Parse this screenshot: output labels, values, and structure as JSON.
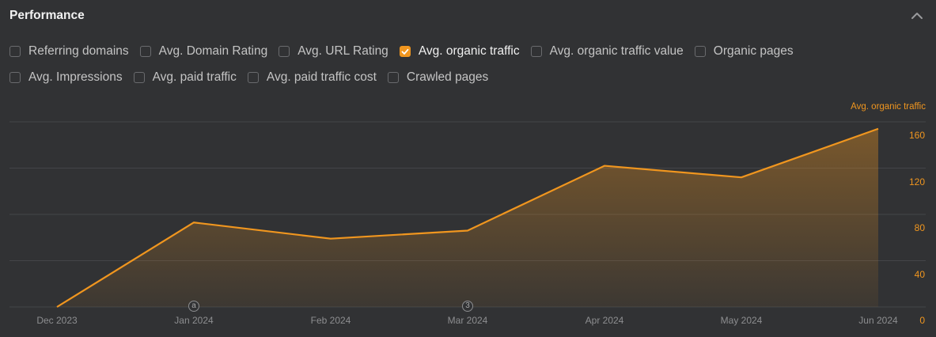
{
  "panel": {
    "title": "Performance",
    "collapse_icon": "chevron-up-icon"
  },
  "filters": {
    "row1": [
      {
        "label": "Referring domains",
        "checked": false
      },
      {
        "label": "Avg. Domain Rating",
        "checked": false
      },
      {
        "label": "Avg. URL Rating",
        "checked": false
      },
      {
        "label": "Avg. organic traffic",
        "checked": true
      },
      {
        "label": "Avg. organic traffic value",
        "checked": false
      },
      {
        "label": "Organic pages",
        "checked": false
      }
    ],
    "row2": [
      {
        "label": "Avg. Impressions",
        "checked": false
      },
      {
        "label": "Avg. paid traffic",
        "checked": false
      },
      {
        "label": "Avg. paid traffic cost",
        "checked": false
      },
      {
        "label": "Crawled pages",
        "checked": false
      }
    ]
  },
  "colors": {
    "background": "#313234",
    "accent": "#f0961f",
    "gridline": "#444548",
    "axis_text": "#8d8e90"
  },
  "annotations": [
    {
      "label": "a",
      "at": "Jan 2024"
    },
    {
      "label": "3",
      "at": "Mar 2024"
    }
  ],
  "chart_data": {
    "type": "area",
    "title": "",
    "series_label": "Avg. organic traffic",
    "categories": [
      "Dec 2023",
      "Jan 2024",
      "Feb 2024",
      "Mar 2024",
      "Apr 2024",
      "May 2024",
      "Jun 2024"
    ],
    "series": [
      {
        "name": "Avg. organic traffic",
        "values": [
          0,
          73,
          59,
          66,
          122,
          112,
          154
        ]
      }
    ],
    "xlabel": "",
    "ylabel": "Avg. organic traffic",
    "y_ticks": [
      160,
      120,
      80,
      40,
      0
    ],
    "ylim": [
      0,
      160
    ],
    "y_axis_position": "right",
    "grid": true,
    "legend": "none"
  }
}
